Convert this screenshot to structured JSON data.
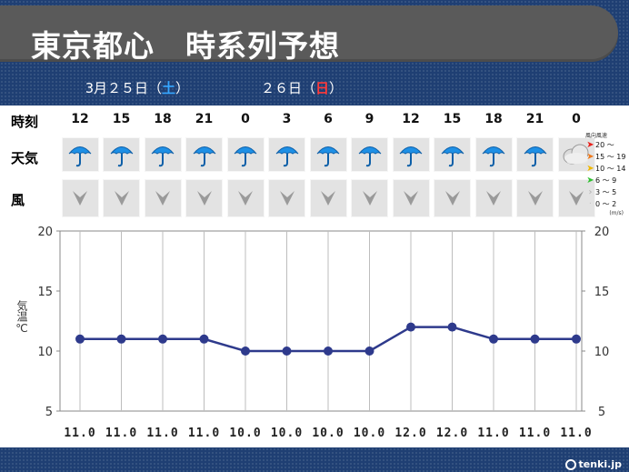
{
  "header": {
    "title": "東京都心　時系列予想"
  },
  "dates": [
    {
      "day": "3月２５日",
      "open": "（",
      "weekday": "土",
      "close": "）",
      "weekday_color": "#36a6ff"
    },
    {
      "day": "２６日",
      "open": "（",
      "weekday": "日",
      "close": "）",
      "weekday_color": "#ff3a3a"
    }
  ],
  "labels": {
    "time": "時刻",
    "weather": "天気",
    "wind": "風",
    "temperature": "気温℃"
  },
  "times": [
    "12",
    "15",
    "18",
    "21",
    "0",
    "3",
    "6",
    "9",
    "12",
    "15",
    "18",
    "21",
    "0"
  ],
  "weather_icons": [
    "umbrella-icon",
    "umbrella-icon",
    "umbrella-icon",
    "umbrella-icon",
    "umbrella-icon",
    "umbrella-icon",
    "umbrella-icon",
    "umbrella-icon",
    "umbrella-icon",
    "umbrella-icon",
    "umbrella-icon",
    "umbrella-icon",
    "cloud-icon"
  ],
  "wind_icons": [
    "wind-arrow-icon",
    "wind-arrow-icon",
    "wind-arrow-icon",
    "wind-arrow-icon",
    "wind-arrow-icon",
    "wind-arrow-icon",
    "wind-arrow-icon",
    "wind-arrow-icon",
    "wind-arrow-icon",
    "wind-arrow-icon",
    "wind-arrow-icon",
    "wind-arrow-icon",
    "wind-arrow-icon"
  ],
  "legend": {
    "header": "風向風速",
    "unit": "(m/s)",
    "items": [
      {
        "label": "20 ～",
        "color": "#e8201a"
      },
      {
        "label": "15 ～ 19",
        "color": "#f07818"
      },
      {
        "label": "10 ～ 14",
        "color": "#f0b800"
      },
      {
        "label": "6 ～ 9",
        "color": "#30c030"
      },
      {
        "label": "3 ～ 5",
        "color": "#b0b0b0"
      },
      {
        "label": "0 ～ 2",
        "color": "#c8c8c8"
      }
    ]
  },
  "chart_data": {
    "type": "line",
    "x": [
      "12",
      "15",
      "18",
      "21",
      "0",
      "3",
      "6",
      "9",
      "12",
      "15",
      "18",
      "21",
      "0"
    ],
    "series": [
      {
        "values": [
          11.0,
          11.0,
          11.0,
          11.0,
          10.0,
          10.0,
          10.0,
          10.0,
          12.0,
          12.0,
          11.0,
          11.0,
          11.0
        ],
        "color": "#2e3a8c"
      }
    ],
    "value_labels": [
      "11.0",
      "11.0",
      "11.0",
      "11.0",
      "10.0",
      "10.0",
      "10.0",
      "10.0",
      "12.0",
      "12.0",
      "11.0",
      "11.0",
      "11.0"
    ],
    "ylabel": "気温℃",
    "ylim": [
      5,
      20
    ],
    "yticks": [
      5,
      10,
      15,
      20
    ],
    "grid": true
  },
  "footer": {
    "brand": "tenki.jp"
  }
}
